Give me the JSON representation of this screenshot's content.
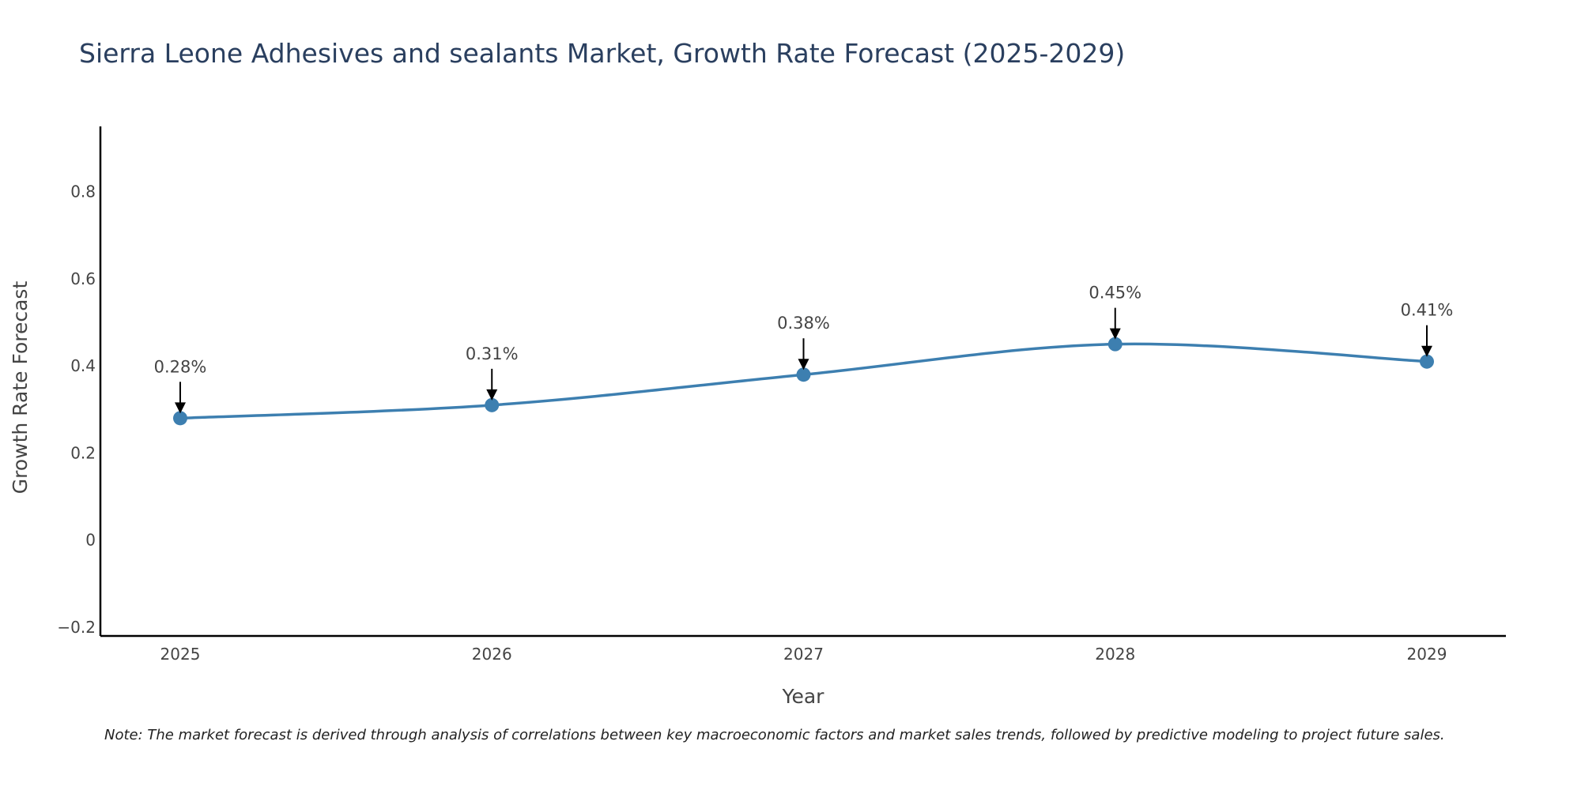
{
  "chart_data": {
    "type": "line",
    "title": "Sierra Leone Adhesives and sealants Market, Growth Rate Forecast (2025-2029)",
    "xlabel": "Year",
    "ylabel": "Growth Rate Forecast",
    "categories": [
      "2025",
      "2026",
      "2027",
      "2028",
      "2029"
    ],
    "values": [
      0.28,
      0.31,
      0.38,
      0.45,
      0.41
    ],
    "annotations": [
      "0.28%",
      "0.31%",
      "0.38%",
      "0.45%",
      "0.41%"
    ],
    "ylim": [
      -0.22,
      0.95
    ],
    "yticks": [
      -0.2,
      0,
      0.2,
      0.4,
      0.6,
      0.8
    ],
    "ytick_labels": [
      "−0.2",
      "0",
      "0.2",
      "0.4",
      "0.6",
      "0.8"
    ],
    "grid": false,
    "colors": {
      "line": "#3d7fb0",
      "marker": "#3d7fb0",
      "axis": "#000000",
      "arrow": "#000000"
    }
  },
  "note": "Note: The market forecast is derived through analysis of correlations between key macroeconomic factors and market sales trends, followed by predictive modeling to project future sales."
}
